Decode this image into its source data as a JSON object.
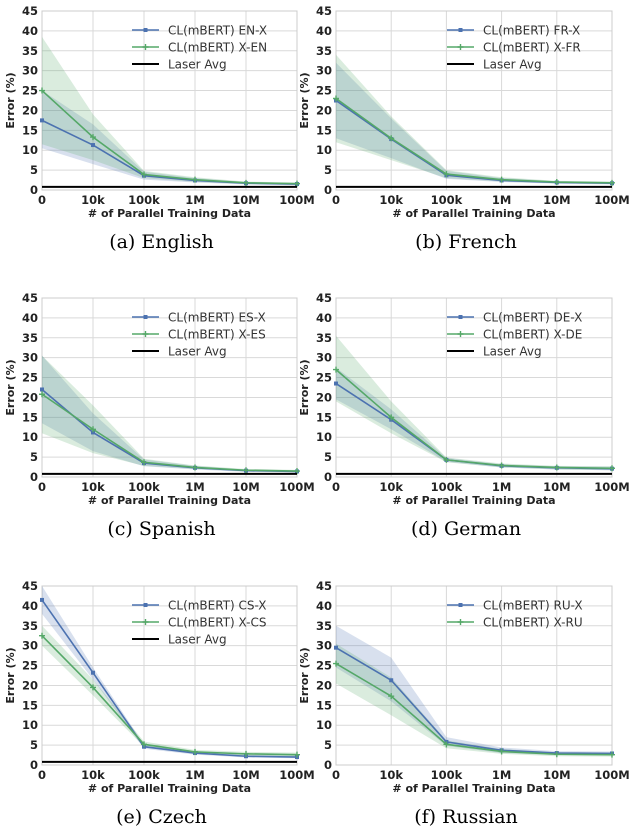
{
  "chart_data": [
    {
      "type": "line",
      "caption": "(a) English",
      "categories": [
        "0",
        "10k",
        "100k",
        "1M",
        "10M",
        "100M"
      ],
      "xlabel": "# of Parallel Training Data",
      "ylabel": "Error (%)",
      "ylim": [
        0,
        45
      ],
      "yticks": [
        "0",
        "5",
        "10",
        "15",
        "20",
        "25",
        "30",
        "35",
        "40",
        "45"
      ],
      "grid": true,
      "legend_position": "top-right",
      "series": [
        {
          "name": "CL(mBERT) EN-X",
          "color": "#4c72b0",
          "marker": "square",
          "values": [
            17.5,
            11.3,
            3.6,
            2.4,
            1.7,
            1.5
          ],
          "band_low": [
            10.5,
            6.5,
            2.6,
            1.9,
            1.4,
            1.2
          ],
          "band_high": [
            25.0,
            16.5,
            4.6,
            3.0,
            2.0,
            1.8
          ]
        },
        {
          "name": "CL(mBERT) X-EN",
          "color": "#55a868",
          "marker": "plus",
          "values": [
            25.0,
            13.3,
            3.9,
            2.6,
            1.8,
            1.6
          ],
          "band_low": [
            11.5,
            7.5,
            3.0,
            2.0,
            1.5,
            1.3
          ],
          "band_high": [
            38.5,
            19.0,
            4.8,
            3.2,
            2.1,
            1.9
          ]
        },
        {
          "name": "Laser Avg",
          "color": "#000000",
          "marker": "none",
          "values": [
            0.8,
            0.8,
            0.8,
            0.8,
            0.8,
            0.8
          ]
        }
      ]
    },
    {
      "type": "line",
      "caption": "(b) French",
      "categories": [
        "0",
        "10k",
        "100k",
        "1M",
        "10M",
        "100M"
      ],
      "xlabel": "# of Parallel Training Data",
      "ylabel": "Error (%)",
      "ylim": [
        0,
        45
      ],
      "yticks": [
        "0",
        "5",
        "10",
        "15",
        "20",
        "25",
        "30",
        "35",
        "40",
        "45"
      ],
      "grid": true,
      "legend_position": "top-right",
      "series": [
        {
          "name": "CL(mBERT) FR-X",
          "color": "#4c72b0",
          "marker": "square",
          "values": [
            22.5,
            12.8,
            3.7,
            2.4,
            1.9,
            1.7
          ],
          "band_low": [
            13.0,
            8.0,
            2.8,
            2.0,
            1.6,
            1.4
          ],
          "band_high": [
            32.0,
            18.0,
            4.8,
            3.0,
            2.2,
            2.0
          ]
        },
        {
          "name": "CL(mBERT) X-FR",
          "color": "#55a868",
          "marker": "plus",
          "values": [
            23.0,
            13.0,
            4.0,
            2.6,
            2.0,
            1.8
          ],
          "band_low": [
            12.0,
            7.5,
            3.0,
            2.1,
            1.7,
            1.5
          ],
          "band_high": [
            34.0,
            18.5,
            5.0,
            3.2,
            2.3,
            2.1
          ]
        },
        {
          "name": "Laser Avg",
          "color": "#000000",
          "marker": "none",
          "values": [
            0.8,
            0.8,
            0.8,
            0.8,
            0.8,
            0.8
          ]
        }
      ]
    },
    {
      "type": "line",
      "caption": "(c) Spanish",
      "categories": [
        "0",
        "10k",
        "100k",
        "1M",
        "10M",
        "100M"
      ],
      "xlabel": "# of Parallel Training Data",
      "ylabel": "Error (%)",
      "ylim": [
        0,
        45
      ],
      "yticks": [
        "0",
        "5",
        "10",
        "15",
        "20",
        "25",
        "30",
        "35",
        "40",
        "45"
      ],
      "grid": true,
      "legend_position": "top-right",
      "series": [
        {
          "name": "CL(mBERT) ES-X",
          "color": "#4c72b0",
          "marker": "square",
          "values": [
            22.0,
            11.2,
            3.5,
            2.3,
            1.6,
            1.4
          ],
          "band_low": [
            13.5,
            6.5,
            2.7,
            1.9,
            1.3,
            1.1
          ],
          "band_high": [
            30.5,
            16.0,
            4.4,
            2.8,
            1.9,
            1.7
          ]
        },
        {
          "name": "CL(mBERT) X-ES",
          "color": "#55a868",
          "marker": "plus",
          "values": [
            20.8,
            12.0,
            3.7,
            2.4,
            1.7,
            1.5
          ],
          "band_low": [
            11.0,
            6.0,
            2.8,
            2.0,
            1.4,
            1.2
          ],
          "band_high": [
            30.5,
            18.0,
            4.6,
            2.9,
            2.0,
            1.8
          ]
        },
        {
          "name": "Laser Avg",
          "color": "#000000",
          "marker": "none",
          "values": [
            0.8,
            0.8,
            0.8,
            0.8,
            0.8,
            0.8
          ]
        }
      ]
    },
    {
      "type": "line",
      "caption": "(d) German",
      "categories": [
        "0",
        "10k",
        "100k",
        "1M",
        "10M",
        "100M"
      ],
      "xlabel": "# of Parallel Training Data",
      "ylabel": "Error (%)",
      "ylim": [
        0,
        45
      ],
      "yticks": [
        "0",
        "5",
        "10",
        "15",
        "20",
        "25",
        "30",
        "35",
        "40",
        "45"
      ],
      "grid": true,
      "legend_position": "top-right",
      "series": [
        {
          "name": "CL(mBERT) DE-X",
          "color": "#4c72b0",
          "marker": "square",
          "values": [
            23.5,
            14.4,
            4.3,
            2.8,
            2.3,
            2.1
          ],
          "band_low": [
            19.5,
            12.0,
            3.8,
            2.4,
            1.9,
            1.7
          ],
          "band_high": [
            27.5,
            17.0,
            4.8,
            3.2,
            2.7,
            2.6
          ]
        },
        {
          "name": "CL(mBERT) X-DE",
          "color": "#55a868",
          "marker": "plus",
          "values": [
            27.0,
            15.0,
            4.3,
            2.9,
            2.4,
            2.2
          ],
          "band_low": [
            19.0,
            11.0,
            3.7,
            2.4,
            1.9,
            1.7
          ],
          "band_high": [
            35.5,
            19.0,
            4.9,
            3.4,
            2.8,
            2.7
          ]
        },
        {
          "name": "Laser Avg",
          "color": "#000000",
          "marker": "none",
          "values": [
            0.8,
            0.8,
            0.8,
            0.8,
            0.8,
            0.8
          ]
        }
      ]
    },
    {
      "type": "line",
      "caption": "(e) Czech",
      "categories": [
        "0",
        "10k",
        "100k",
        "1M",
        "10M",
        "100M"
      ],
      "xlabel": "# of Parallel Training Data",
      "ylabel": "Error (%)",
      "ylim": [
        0,
        45
      ],
      "yticks": [
        "0",
        "5",
        "10",
        "15",
        "20",
        "25",
        "30",
        "35",
        "40",
        "45"
      ],
      "grid": true,
      "legend_position": "top-right",
      "series": [
        {
          "name": "CL(mBERT) CS-X",
          "color": "#4c72b0",
          "marker": "square",
          "values": [
            41.5,
            23.2,
            4.6,
            3.0,
            2.2,
            2.0
          ],
          "band_low": [
            38.0,
            21.5,
            4.1,
            2.6,
            1.9,
            1.7
          ],
          "band_high": [
            45.0,
            24.5,
            5.1,
            3.4,
            2.6,
            2.4
          ]
        },
        {
          "name": "CL(mBERT) X-CS",
          "color": "#55a868",
          "marker": "plus",
          "values": [
            32.5,
            19.5,
            5.2,
            3.3,
            2.8,
            2.6
          ],
          "band_low": [
            30.0,
            17.5,
            4.6,
            2.8,
            2.3,
            2.1
          ],
          "band_high": [
            35.0,
            21.5,
            5.9,
            3.8,
            3.3,
            3.1
          ]
        },
        {
          "name": "Laser Avg",
          "color": "#000000",
          "marker": "none",
          "values": [
            0.8,
            0.8,
            0.8,
            0.8,
            0.8,
            0.8
          ]
        }
      ]
    },
    {
      "type": "line",
      "caption": "(f) Russian",
      "categories": [
        "0",
        "10k",
        "100k",
        "1M",
        "10M",
        "100M"
      ],
      "xlabel": "# of Parallel Training Data",
      "ylabel": "Error (%)",
      "ylim": [
        0,
        45
      ],
      "yticks": [
        "0",
        "5",
        "10",
        "15",
        "20",
        "25",
        "30",
        "35",
        "40",
        "45"
      ],
      "grid": true,
      "legend_position": "top-right",
      "series": [
        {
          "name": "CL(mBERT) RU-X",
          "color": "#4c72b0",
          "marker": "square",
          "values": [
            29.5,
            21.3,
            5.8,
            3.7,
            3.0,
            2.9
          ],
          "band_low": [
            24.5,
            16.0,
            4.8,
            3.0,
            2.5,
            2.4
          ],
          "band_high": [
            35.0,
            27.0,
            7.0,
            4.4,
            3.5,
            3.4
          ]
        },
        {
          "name": "CL(mBERT) X-RU",
          "color": "#55a868",
          "marker": "plus",
          "values": [
            25.5,
            17.3,
            5.2,
            3.4,
            2.7,
            2.6
          ],
          "band_low": [
            20.5,
            12.5,
            4.2,
            2.8,
            2.2,
            2.1
          ],
          "band_high": [
            30.5,
            22.0,
            6.2,
            4.0,
            3.2,
            3.1
          ]
        }
      ]
    }
  ]
}
